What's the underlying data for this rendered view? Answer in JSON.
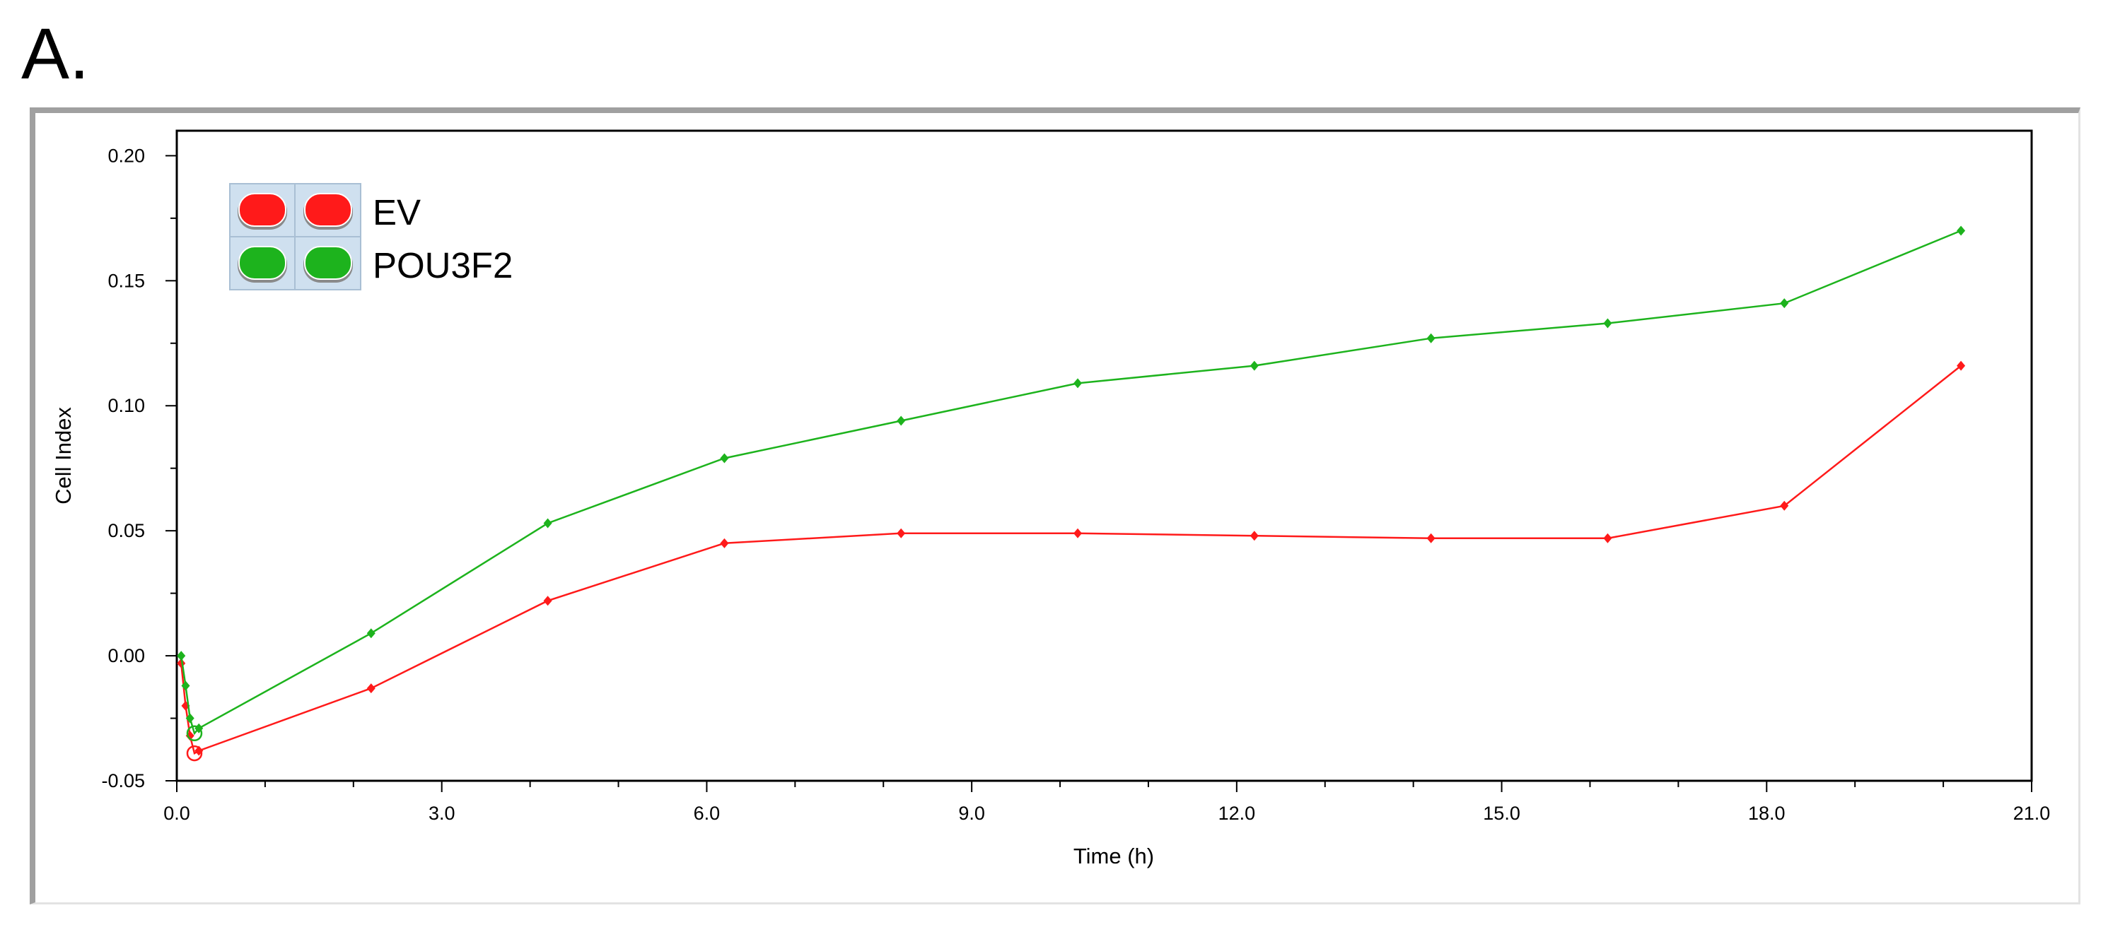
{
  "panel_label": "A.",
  "chart_data": {
    "type": "line",
    "xlabel": "Time (h)",
    "ylabel": "Cell Index",
    "xlim": [
      0,
      21
    ],
    "ylim": [
      -0.05,
      0.21
    ],
    "x_ticks": [
      "0.0",
      "3.0",
      "6.0",
      "9.0",
      "12.0",
      "15.0",
      "18.0",
      "21.0"
    ],
    "y_ticks": [
      "-0.05",
      "0.00",
      "0.05",
      "0.10",
      "0.15",
      "0.20"
    ],
    "x_tick_values": [
      0,
      3,
      6,
      9,
      12,
      15,
      18,
      21
    ],
    "y_tick_values": [
      -0.05,
      0.0,
      0.05,
      0.1,
      0.15,
      0.2
    ],
    "grid": false,
    "legend_position": "top-left",
    "series": [
      {
        "name": "EV",
        "color": "#ff1a1a",
        "x": [
          0.05,
          0.1,
          0.15,
          0.2,
          0.25,
          2.2,
          4.2,
          6.2,
          8.2,
          10.2,
          12.2,
          14.2,
          16.2,
          18.2,
          20.2
        ],
        "y": [
          -0.003,
          -0.02,
          -0.032,
          -0.039,
          -0.038,
          -0.013,
          0.022,
          0.045,
          0.049,
          0.049,
          0.048,
          0.047,
          0.047,
          0.06,
          0.116
        ],
        "marker_open_index": 3
      },
      {
        "name": "POU3F2",
        "color": "#1db31d",
        "x": [
          0.05,
          0.1,
          0.15,
          0.2,
          0.25,
          2.2,
          4.2,
          6.2,
          8.2,
          10.2,
          12.2,
          14.2,
          16.2,
          18.2,
          20.2
        ],
        "y": [
          0.0,
          -0.012,
          -0.025,
          -0.031,
          -0.029,
          0.009,
          0.053,
          0.079,
          0.094,
          0.109,
          0.116,
          0.127,
          0.133,
          0.141,
          0.17
        ],
        "marker_open_index": 3
      }
    ]
  }
}
